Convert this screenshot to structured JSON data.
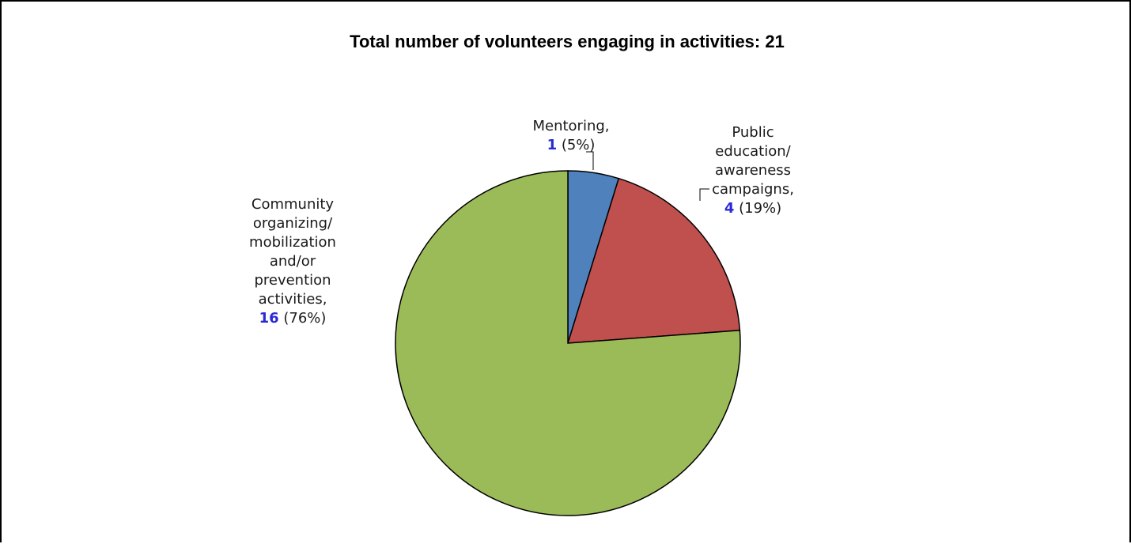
{
  "chart_data": {
    "type": "pie",
    "title": "Total number of volunteers engaging in activities: 21",
    "slices": [
      {
        "name": "Mentoring",
        "value": 1,
        "percent": "5%",
        "color": "#4f81bd",
        "label_lines": [
          "Mentoring,"
        ],
        "value_text": "1",
        "percent_text": "(5%)"
      },
      {
        "name": "Public education/ awareness campaigns",
        "value": 4,
        "percent": "19%",
        "color": "#c0504d",
        "label_lines": [
          "Public",
          "education/",
          "awareness",
          "campaigns,"
        ],
        "value_text": "4",
        "percent_text": "(19%)"
      },
      {
        "name": "Community organizing/ mobilization and/or prevention activities",
        "value": 16,
        "percent": "76%",
        "color": "#9bbb59",
        "label_lines": [
          "Community",
          "organizing/",
          "mobilization",
          "and/or",
          "prevention",
          "activities,"
        ],
        "value_text": "16",
        "percent_text": "(76%)"
      }
    ]
  }
}
